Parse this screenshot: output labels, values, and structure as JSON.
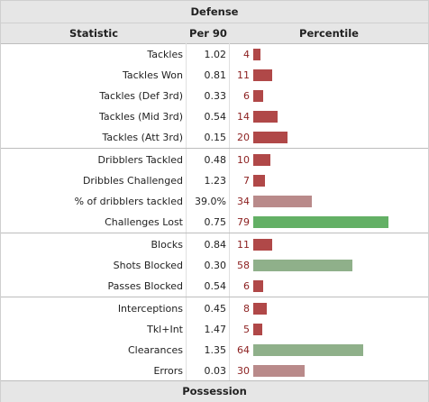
{
  "section_title": "Defense",
  "columns": {
    "stat": "Statistic",
    "per90": "Per 90",
    "percentile": "Percentile"
  },
  "footer_title": "Possession",
  "colors": {
    "low": "#b04848",
    "mid_low": "#b98a8a",
    "high_green": "#63b065",
    "mid_green": "#8fb08a",
    "pct_text": "#8b1e1e"
  },
  "rows": [
    {
      "stat": "Tackles",
      "per90": "1.02",
      "percentile": "4",
      "pct_value": 4,
      "color": "#b04848"
    },
    {
      "stat": "Tackles Won",
      "per90": "0.81",
      "percentile": "11",
      "pct_value": 11,
      "color": "#b04848"
    },
    {
      "stat": "Tackles (Def 3rd)",
      "per90": "0.33",
      "percentile": "6",
      "pct_value": 6,
      "color": "#b04848"
    },
    {
      "stat": "Tackles (Mid 3rd)",
      "per90": "0.54",
      "percentile": "14",
      "pct_value": 14,
      "color": "#b04848"
    },
    {
      "stat": "Tackles (Att 3rd)",
      "per90": "0.15",
      "percentile": "20",
      "pct_value": 20,
      "color": "#b04848"
    },
    {
      "stat": "Dribblers Tackled",
      "per90": "0.48",
      "percentile": "10",
      "pct_value": 10,
      "color": "#b04848"
    },
    {
      "stat": "Dribbles Challenged",
      "per90": "1.23",
      "percentile": "7",
      "pct_value": 7,
      "color": "#b04848"
    },
    {
      "stat": "% of dribblers tackled",
      "per90": "39.0%",
      "percentile": "34",
      "pct_value": 34,
      "color": "#b98a8a"
    },
    {
      "stat": "Challenges Lost",
      "per90": "0.75",
      "percentile": "79",
      "pct_value": 79,
      "color": "#63b065"
    },
    {
      "stat": "Blocks",
      "per90": "0.84",
      "percentile": "11",
      "pct_value": 11,
      "color": "#b04848"
    },
    {
      "stat": "Shots Blocked",
      "per90": "0.30",
      "percentile": "58",
      "pct_value": 58,
      "color": "#8fb08a"
    },
    {
      "stat": "Passes Blocked",
      "per90": "0.54",
      "percentile": "6",
      "pct_value": 6,
      "color": "#b04848"
    },
    {
      "stat": "Interceptions",
      "per90": "0.45",
      "percentile": "8",
      "pct_value": 8,
      "color": "#b04848"
    },
    {
      "stat": "Tkl+Int",
      "per90": "1.47",
      "percentile": "5",
      "pct_value": 5,
      "color": "#b04848"
    },
    {
      "stat": "Clearances",
      "per90": "1.35",
      "percentile": "64",
      "pct_value": 64,
      "color": "#8fb08a"
    },
    {
      "stat": "Errors",
      "per90": "0.03",
      "percentile": "30",
      "pct_value": 30,
      "color": "#b98a8a"
    }
  ]
}
